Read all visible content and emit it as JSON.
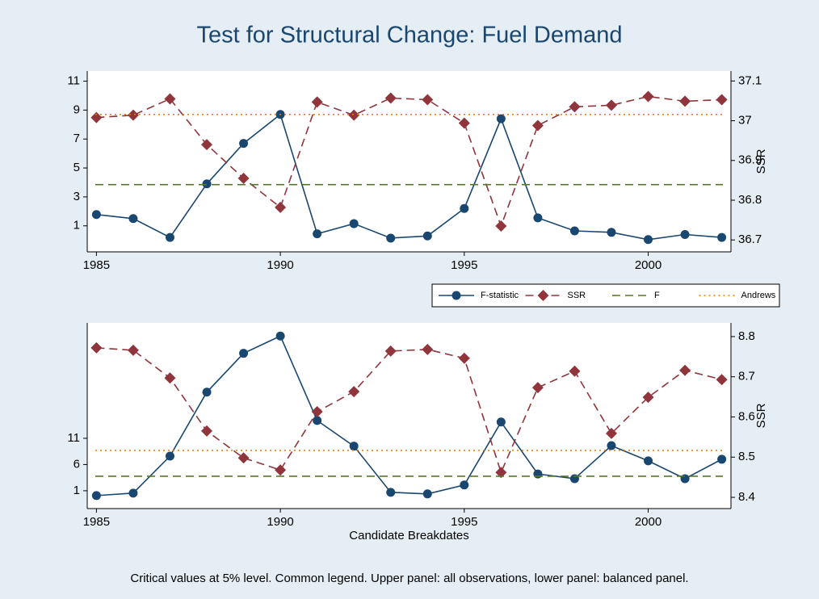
{
  "title": "Test for Structural Change: Fuel Demand",
  "note": "Critical values at 5% level. Common legend. Upper panel: all observations, lower panel: balanced panel.",
  "legend": "between-panels",
  "chart_data": [
    {
      "type": "line",
      "x": [
        1985,
        1986,
        1987,
        1988,
        1989,
        1990,
        1991,
        1992,
        1993,
        1994,
        1995,
        1996,
        1997,
        1998,
        1999,
        2000,
        2001,
        2002
      ],
      "xlim": [
        1984.75,
        2002.25
      ],
      "xticks": [
        1985,
        1990,
        1995,
        2000
      ],
      "ylim": [
        -0.8,
        11.7
      ],
      "yticks": [
        1,
        3,
        5,
        7,
        9,
        11
      ],
      "y2lim": [
        36.67,
        37.125
      ],
      "y2ticks": [
        36.7,
        36.8,
        36.9,
        37,
        37.1
      ],
      "y2label": "SSR",
      "series": [
        {
          "name": "F-statistic",
          "color": "#1a476f",
          "marker": "circle",
          "dash": "none",
          "axis": "y",
          "values": [
            1.78,
            1.5,
            0.2,
            3.9,
            6.7,
            8.7,
            0.45,
            1.15,
            0.15,
            0.3,
            2.2,
            8.4,
            1.55,
            0.65,
            0.55,
            0.05,
            0.4,
            0.2
          ]
        },
        {
          "name": "SSR",
          "color": "#90353b",
          "marker": "diamond",
          "dash": "10,6",
          "axis": "y2",
          "values": [
            37.008,
            37.014,
            37.055,
            36.94,
            36.855,
            36.782,
            37.047,
            37.014,
            37.057,
            37.053,
            36.994,
            36.735,
            36.988,
            37.035,
            37.039,
            37.061,
            37.049,
            37.053
          ]
        },
        {
          "name": "F",
          "color": "#55752f",
          "marker": "none",
          "dash": "10,6",
          "axis": "y",
          "hline": 3.85
        },
        {
          "name": "Andrews",
          "color": "#e37e00",
          "marker": "none",
          "dash": "2,4",
          "axis": "y",
          "hline": 8.7
        }
      ]
    },
    {
      "type": "line",
      "x": [
        1985,
        1986,
        1987,
        1988,
        1989,
        1990,
        1991,
        1992,
        1993,
        1994,
        1995,
        1996,
        1997,
        1998,
        1999,
        2000,
        2001,
        2002
      ],
      "xlim": [
        1984.75,
        2002.25
      ],
      "xticks": [
        1985,
        1990,
        1995,
        2000
      ],
      "xlabel": "Candidate Breakdates",
      "ylim": [
        -2.4,
        33
      ],
      "yticks": [
        1,
        6,
        11
      ],
      "y2lim": [
        8.372,
        8.834
      ],
      "y2ticks": [
        8.4,
        8.5,
        8.6,
        8.7,
        8.8
      ],
      "y2label": "SSR",
      "series": [
        {
          "name": "F-statistic",
          "color": "#1a476f",
          "marker": "circle",
          "dash": "none",
          "axis": "y",
          "values": [
            0.08,
            0.55,
            7.6,
            19.8,
            27.2,
            30.5,
            14.4,
            9.5,
            0.7,
            0.4,
            2.1,
            14.1,
            4.2,
            3.3,
            9.6,
            6.7,
            3.3,
            7.0
          ]
        },
        {
          "name": "SSR",
          "color": "#90353b",
          "marker": "diamond",
          "dash": "10,6",
          "axis": "y2",
          "values": [
            8.772,
            8.766,
            8.697,
            8.565,
            8.498,
            8.468,
            8.613,
            8.663,
            8.764,
            8.768,
            8.746,
            8.462,
            8.673,
            8.714,
            8.559,
            8.649,
            8.716,
            8.693
          ]
        },
        {
          "name": "F",
          "color": "#55752f",
          "marker": "none",
          "dash": "10,6",
          "axis": "y",
          "hline": 3.77
        },
        {
          "name": "Andrews",
          "color": "#e37e00",
          "marker": "none",
          "dash": "2,4",
          "axis": "y",
          "hline": 8.7
        }
      ]
    }
  ]
}
